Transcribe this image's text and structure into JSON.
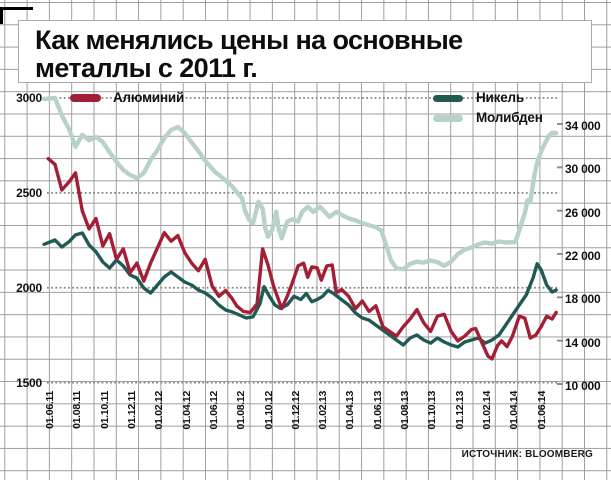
{
  "title": "Как менялись цены на основные\nметаллы с 2011 г.",
  "source": "ИСТОЧНИК: BLOOMBERG",
  "colors": {
    "aluminum": "#a21f35",
    "nickel": "#215955",
    "molybdenum": "#b8d1ca",
    "grid": "#9e9e9e",
    "dotted_line": "#858585",
    "text": "#111111"
  },
  "chart_data": {
    "type": "line",
    "title": "Как менялись цены на основные металлы с 2011 г.",
    "grid": "graph-paper background, dotted horizontal leader lines at left-axis ticks",
    "legend_position": "top, inside plot",
    "x_axis": {
      "unit": "date",
      "tick_labels": [
        "01.06.11",
        "01.08.11",
        "01.10.11",
        "01.12.11",
        "01.02.12",
        "01.04.12",
        "01.06.12",
        "01.08.12",
        "01.10.12",
        "01.12.12",
        "01.02.13",
        "01.04.13",
        "01.06.13",
        "01.08.13",
        "01.10.13",
        "01.12.13",
        "01.02.14",
        "01.04.14",
        "01.06.14"
      ],
      "months_per_tick": 2
    },
    "left_axis": {
      "series": "Алюминий",
      "tick_labels": [
        "3000",
        "2500",
        "2000",
        "1500"
      ],
      "tick_values": [
        3000,
        2500,
        2000,
        1500
      ],
      "range": [
        1500,
        3000
      ]
    },
    "right_axis": {
      "series": "Никель, Молибден",
      "tick_labels": [
        "34 000",
        "30 000",
        "26 000",
        "22 000",
        "18 000",
        "14 000",
        "10 000"
      ],
      "tick_values": [
        34000,
        30000,
        26000,
        22000,
        18000,
        14000,
        10000
      ],
      "range": [
        10000,
        34000
      ]
    },
    "series": [
      {
        "name": "Алюминий",
        "color": "#a21f35",
        "axis": "left",
        "points": [
          [
            -0.5,
            2680
          ],
          [
            0,
            2650
          ],
          [
            0.5,
            2515
          ],
          [
            1,
            2555
          ],
          [
            1.5,
            2605
          ],
          [
            2,
            2405
          ],
          [
            2.5,
            2310
          ],
          [
            3,
            2365
          ],
          [
            3.5,
            2220
          ],
          [
            4,
            2285
          ],
          [
            4.5,
            2150
          ],
          [
            5,
            2205
          ],
          [
            5.5,
            2080
          ],
          [
            6,
            2130
          ],
          [
            6.5,
            2035
          ],
          [
            7,
            2130
          ],
          [
            7.5,
            2210
          ],
          [
            8,
            2290
          ],
          [
            8.5,
            2245
          ],
          [
            9,
            2275
          ],
          [
            9.5,
            2185
          ],
          [
            10,
            2130
          ],
          [
            10.5,
            2090
          ],
          [
            11,
            2150
          ],
          [
            11.5,
            2010
          ],
          [
            12,
            1955
          ],
          [
            12.5,
            1985
          ],
          [
            13,
            1940
          ],
          [
            13.3,
            1905
          ],
          [
            13.8,
            1875
          ],
          [
            14.3,
            1870
          ],
          [
            14.8,
            1915
          ],
          [
            15.2,
            2205
          ],
          [
            15.6,
            2120
          ],
          [
            16,
            2010
          ],
          [
            16.6,
            1890
          ],
          [
            17,
            1955
          ],
          [
            17.4,
            2030
          ],
          [
            17.8,
            2115
          ],
          [
            18.2,
            2130
          ],
          [
            18.5,
            2055
          ],
          [
            18.8,
            2110
          ],
          [
            19.2,
            2105
          ],
          [
            19.5,
            2040
          ],
          [
            19.9,
            2115
          ],
          [
            20.3,
            2120
          ],
          [
            20.6,
            1975
          ],
          [
            21,
            1990
          ],
          [
            21.5,
            1955
          ],
          [
            22,
            1890
          ],
          [
            22.5,
            1930
          ],
          [
            23,
            1875
          ],
          [
            23.5,
            1905
          ],
          [
            24,
            1795
          ],
          [
            24.5,
            1770
          ],
          [
            25,
            1745
          ],
          [
            25.5,
            1795
          ],
          [
            26,
            1835
          ],
          [
            26.5,
            1885
          ],
          [
            27,
            1815
          ],
          [
            27.5,
            1770
          ],
          [
            28,
            1850
          ],
          [
            28.5,
            1860
          ],
          [
            29,
            1770
          ],
          [
            29.5,
            1720
          ],
          [
            30,
            1745
          ],
          [
            30.5,
            1780
          ],
          [
            30.8,
            1785
          ],
          [
            31.2,
            1720
          ],
          [
            31.7,
            1640
          ],
          [
            32,
            1625
          ],
          [
            32.4,
            1695
          ],
          [
            32.7,
            1720
          ],
          [
            33.1,
            1690
          ],
          [
            33.5,
            1745
          ],
          [
            34,
            1850
          ],
          [
            34.4,
            1840
          ],
          [
            34.8,
            1735
          ],
          [
            35.2,
            1750
          ],
          [
            35.6,
            1795
          ],
          [
            36,
            1850
          ],
          [
            36.4,
            1835
          ],
          [
            36.7,
            1870
          ]
        ]
      },
      {
        "name": "Никель",
        "color": "#215955",
        "axis": "right",
        "points": [
          [
            -0.8,
            22900
          ],
          [
            0,
            23290
          ],
          [
            0.5,
            22650
          ],
          [
            1,
            23110
          ],
          [
            1.5,
            23760
          ],
          [
            2,
            23940
          ],
          [
            2.5,
            22830
          ],
          [
            3,
            22200
          ],
          [
            3.5,
            21260
          ],
          [
            4,
            20710
          ],
          [
            4.5,
            21450
          ],
          [
            5,
            20890
          ],
          [
            5.5,
            20060
          ],
          [
            6,
            19780
          ],
          [
            6.5,
            18860
          ],
          [
            7,
            18400
          ],
          [
            7.5,
            19140
          ],
          [
            8,
            19880
          ],
          [
            8.5,
            20340
          ],
          [
            9,
            19880
          ],
          [
            9.5,
            19420
          ],
          [
            10,
            19140
          ],
          [
            10.5,
            18680
          ],
          [
            11,
            18400
          ],
          [
            11.5,
            17940
          ],
          [
            12,
            17290
          ],
          [
            12.5,
            16830
          ],
          [
            13,
            16650
          ],
          [
            13.5,
            16370
          ],
          [
            14,
            16090
          ],
          [
            14.5,
            16200
          ],
          [
            15,
            17400
          ],
          [
            15.3,
            18980
          ],
          [
            15.7,
            18100
          ],
          [
            16.1,
            17300
          ],
          [
            16.5,
            16990
          ],
          [
            17,
            17300
          ],
          [
            17.5,
            18100
          ],
          [
            18,
            17800
          ],
          [
            18.4,
            18350
          ],
          [
            18.8,
            17600
          ],
          [
            19.2,
            17800
          ],
          [
            19.6,
            18100
          ],
          [
            20,
            18650
          ],
          [
            20.4,
            18350
          ],
          [
            21,
            17760
          ],
          [
            21.5,
            17290
          ],
          [
            22,
            16550
          ],
          [
            22.5,
            16090
          ],
          [
            23,
            15900
          ],
          [
            23.5,
            15440
          ],
          [
            24,
            14980
          ],
          [
            24.5,
            14520
          ],
          [
            25,
            14060
          ],
          [
            25.5,
            13600
          ],
          [
            26,
            14250
          ],
          [
            26.5,
            14520
          ],
          [
            27,
            14060
          ],
          [
            27.5,
            13780
          ],
          [
            28,
            14250
          ],
          [
            28.5,
            13880
          ],
          [
            29,
            13600
          ],
          [
            29.5,
            13420
          ],
          [
            30,
            13880
          ],
          [
            30.5,
            14060
          ],
          [
            31,
            14250
          ],
          [
            31.5,
            13780
          ],
          [
            32,
            14060
          ],
          [
            32.5,
            14520
          ],
          [
            33,
            15440
          ],
          [
            33.5,
            16370
          ],
          [
            34,
            17290
          ],
          [
            34.5,
            18220
          ],
          [
            35,
            19780
          ],
          [
            35.3,
            21100
          ],
          [
            35.6,
            20520
          ],
          [
            36,
            19140
          ],
          [
            36.4,
            18490
          ],
          [
            36.7,
            18680
          ]
        ]
      },
      {
        "name": "Молибден",
        "color": "#b8d1ca",
        "axis": "right",
        "points": [
          [
            -0.8,
            36300
          ],
          [
            0,
            36400
          ],
          [
            0.5,
            34800
          ],
          [
            1,
            33600
          ],
          [
            1.5,
            31900
          ],
          [
            2,
            33000
          ],
          [
            2.5,
            32500
          ],
          [
            3,
            32800
          ],
          [
            3.5,
            32340
          ],
          [
            4,
            31400
          ],
          [
            4.5,
            30500
          ],
          [
            5,
            29750
          ],
          [
            5.5,
            29290
          ],
          [
            6,
            29000
          ],
          [
            6.5,
            29480
          ],
          [
            7,
            30680
          ],
          [
            7.5,
            31600
          ],
          [
            8,
            32700
          ],
          [
            8.5,
            33450
          ],
          [
            9,
            33720
          ],
          [
            9.5,
            33170
          ],
          [
            10,
            32300
          ],
          [
            10.5,
            31500
          ],
          [
            11,
            30600
          ],
          [
            11.7,
            29600
          ],
          [
            12.4,
            28900
          ],
          [
            13,
            28200
          ],
          [
            13.7,
            27140
          ],
          [
            13.9,
            26060
          ],
          [
            14.2,
            25200
          ],
          [
            14.5,
            24830
          ],
          [
            14.9,
            26830
          ],
          [
            15.2,
            26200
          ],
          [
            15.4,
            24370
          ],
          [
            15.6,
            23600
          ],
          [
            15.9,
            24215
          ],
          [
            16.2,
            25900
          ],
          [
            16.4,
            24215
          ],
          [
            16.6,
            23450
          ],
          [
            17,
            24980
          ],
          [
            17.4,
            25200
          ],
          [
            17.8,
            25000
          ],
          [
            18.1,
            25900
          ],
          [
            18.5,
            26360
          ],
          [
            18.9,
            25900
          ],
          [
            19.4,
            26360
          ],
          [
            20.1,
            25430
          ],
          [
            20.6,
            25900
          ],
          [
            21,
            25600
          ],
          [
            21.5,
            25300
          ],
          [
            22,
            25100
          ],
          [
            22.5,
            24850
          ],
          [
            23,
            24650
          ],
          [
            23.5,
            24480
          ],
          [
            23.9,
            24150
          ],
          [
            24.2,
            23000
          ],
          [
            24.6,
            21400
          ],
          [
            25,
            20700
          ],
          [
            25.5,
            20600
          ],
          [
            26,
            21100
          ],
          [
            26.5,
            21300
          ],
          [
            27,
            21200
          ],
          [
            27.5,
            21400
          ],
          [
            28,
            21250
          ],
          [
            28.5,
            20900
          ],
          [
            29,
            21300
          ],
          [
            29.5,
            22000
          ],
          [
            30,
            22400
          ],
          [
            30.5,
            22600
          ],
          [
            31,
            22900
          ],
          [
            31.5,
            23060
          ],
          [
            32,
            22950
          ],
          [
            32.5,
            23150
          ],
          [
            33,
            23060
          ],
          [
            33.7,
            23100
          ],
          [
            34,
            24200
          ],
          [
            34.4,
            25770
          ],
          [
            34.6,
            26970
          ],
          [
            34.8,
            26800
          ],
          [
            35.1,
            29290
          ],
          [
            35.3,
            30400
          ],
          [
            35.5,
            31140
          ],
          [
            35.7,
            31790
          ],
          [
            36,
            32520
          ],
          [
            36.2,
            32980
          ],
          [
            36.4,
            33170
          ],
          [
            36.7,
            33170
          ]
        ]
      }
    ],
    "legend": [
      {
        "label": "Алюминий",
        "color": "#a21f35"
      },
      {
        "label": "Никель",
        "color": "#215955"
      },
      {
        "label": "Молибден",
        "color": "#b8d1ca"
      }
    ]
  }
}
